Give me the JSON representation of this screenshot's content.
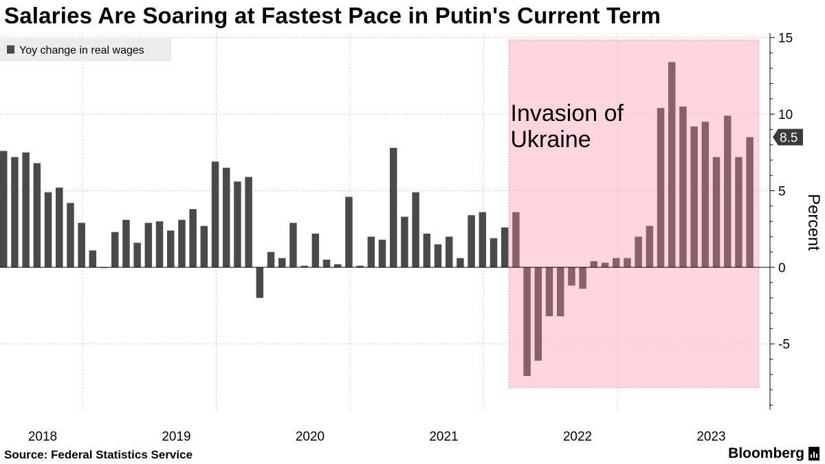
{
  "title": "Salaries Are Soaring at Fastest Pace in Putin's Current Term",
  "source": "Source: Federal Statistics Service",
  "brand": "Bloomberg",
  "colors": {
    "bar": "#4a4a4a",
    "bar_highlight": "#8a6168",
    "highlight_fill": "#ffd6de",
    "highlight_border": "#e59aa8",
    "grid": "#c8c8c8",
    "axis": "#000000",
    "legend_bg": "#ececec",
    "last_value_tag": "#3a3a3a"
  },
  "chart_data": {
    "type": "bar",
    "legend": [
      "Yoy change in real wages"
    ],
    "legend_position": "top-left",
    "ylabel": "Percent",
    "y_axis_side": "right",
    "ylim": [
      -9.3,
      15.3
    ],
    "yticks": [
      -5,
      0,
      5,
      10,
      15
    ],
    "ytick_labels": [
      "-5",
      "0",
      "5",
      "10",
      "15"
    ],
    "year_labels": [
      "2018",
      "2019",
      "2020",
      "2021",
      "2022",
      "2023"
    ],
    "series": [
      {
        "name": "Yoy change in real wages",
        "start": "2018-01",
        "values": [
          7.6,
          7.2,
          7.5,
          6.8,
          4.9,
          5.2,
          4.2,
          2.9,
          1.1,
          0.0,
          2.3,
          3.1,
          1.6,
          2.9,
          3.0,
          2.4,
          3.1,
          3.8,
          2.7,
          6.9,
          6.5,
          5.6,
          5.9,
          -2.0,
          1.0,
          0.6,
          2.9,
          0.1,
          2.2,
          0.5,
          0.2,
          4.6,
          0.1,
          2.0,
          1.8,
          7.8,
          3.3,
          4.9,
          2.2,
          1.5,
          2.0,
          0.6,
          3.4,
          3.6,
          1.9,
          2.6,
          3.6,
          -7.1,
          -6.1,
          -3.2,
          -3.2,
          -1.2,
          -1.4,
          0.4,
          0.3,
          0.6,
          0.6,
          2.0,
          2.7,
          10.4,
          13.4,
          10.5,
          9.2,
          9.5,
          7.2,
          9.9,
          7.2,
          8.5
        ]
      }
    ],
    "annotation": {
      "text_line1": "Invasion of",
      "text_line2": "Ukraine",
      "from_bar_index": 45,
      "to_bar_index": 67
    },
    "last_value_label": "8.5"
  }
}
